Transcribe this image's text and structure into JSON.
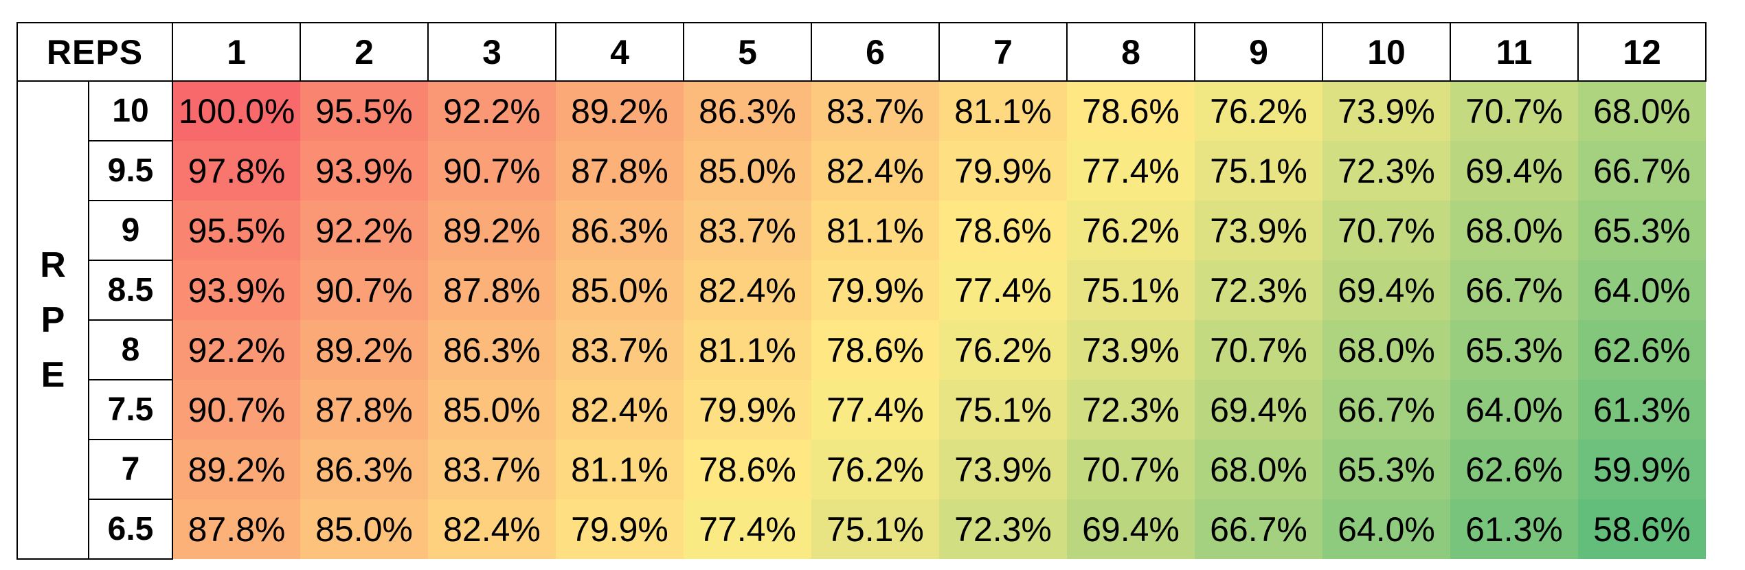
{
  "table": {
    "reps_label": "REPS",
    "rpe_label_letters": [
      "R",
      "P",
      "E"
    ],
    "reps": [
      "1",
      "2",
      "3",
      "4",
      "5",
      "6",
      "7",
      "8",
      "9",
      "10",
      "11",
      "12"
    ],
    "rows": [
      {
        "rpe": "10",
        "values": [
          "100.0%",
          "95.5%",
          "92.2%",
          "89.2%",
          "86.3%",
          "83.7%",
          "81.1%",
          "78.6%",
          "76.2%",
          "73.9%",
          "70.7%",
          "68.0%"
        ]
      },
      {
        "rpe": "9.5",
        "values": [
          "97.8%",
          "93.9%",
          "90.7%",
          "87.8%",
          "85.0%",
          "82.4%",
          "79.9%",
          "77.4%",
          "75.1%",
          "72.3%",
          "69.4%",
          "66.7%"
        ]
      },
      {
        "rpe": "9",
        "values": [
          "95.5%",
          "92.2%",
          "89.2%",
          "86.3%",
          "83.7%",
          "81.1%",
          "78.6%",
          "76.2%",
          "73.9%",
          "70.7%",
          "68.0%",
          "65.3%"
        ]
      },
      {
        "rpe": "8.5",
        "values": [
          "93.9%",
          "90.7%",
          "87.8%",
          "85.0%",
          "82.4%",
          "79.9%",
          "77.4%",
          "75.1%",
          "72.3%",
          "69.4%",
          "66.7%",
          "64.0%"
        ]
      },
      {
        "rpe": "8",
        "values": [
          "92.2%",
          "89.2%",
          "86.3%",
          "83.7%",
          "81.1%",
          "78.6%",
          "76.2%",
          "73.9%",
          "70.7%",
          "68.0%",
          "65.3%",
          "62.6%"
        ]
      },
      {
        "rpe": "7.5",
        "values": [
          "90.7%",
          "87.8%",
          "85.0%",
          "82.4%",
          "79.9%",
          "77.4%",
          "75.1%",
          "72.3%",
          "69.4%",
          "66.7%",
          "64.0%",
          "61.3%"
        ]
      },
      {
        "rpe": "7",
        "values": [
          "89.2%",
          "86.3%",
          "83.7%",
          "81.1%",
          "78.6%",
          "76.2%",
          "73.9%",
          "70.7%",
          "68.0%",
          "65.3%",
          "62.6%",
          "59.9%"
        ]
      },
      {
        "rpe": "6.5",
        "values": [
          "87.8%",
          "85.0%",
          "82.4%",
          "79.9%",
          "77.4%",
          "75.1%",
          "72.3%",
          "69.4%",
          "66.7%",
          "64.0%",
          "61.3%",
          "58.6%"
        ]
      }
    ]
  },
  "color_scale": {
    "low": "#63be7b",
    "mid": "#ffeb84",
    "high": "#f8696b"
  }
}
